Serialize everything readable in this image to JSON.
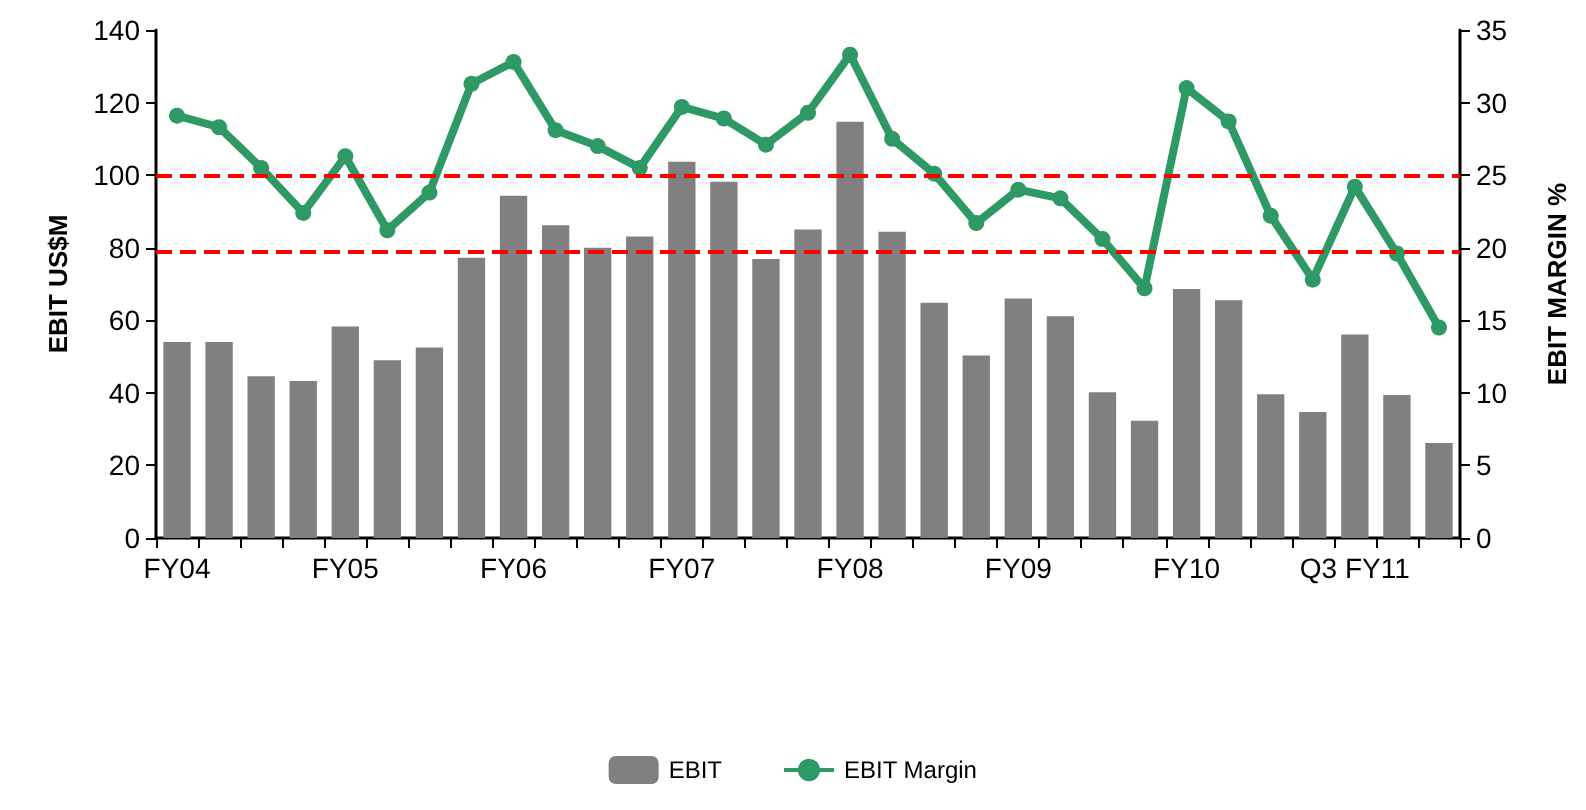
{
  "chart_data": {
    "type": "bar",
    "ylabel": "EBIT US$M",
    "y2label": "EBIT MARGIN %",
    "categories": [
      "FY04",
      null,
      null,
      null,
      "FY05",
      null,
      null,
      null,
      "FY06",
      null,
      null,
      null,
      "FY07",
      null,
      null,
      null,
      "FY08",
      null,
      null,
      null,
      "FY09",
      null,
      null,
      null,
      "FY10",
      null,
      null,
      null,
      "Q3 FY11",
      null,
      null
    ],
    "series": [
      {
        "name": "EBIT",
        "color": "#808080",
        "values": [
          54,
          54,
          44.6,
          43.3,
          58.3,
          49,
          52.5,
          77.2,
          94.3,
          86.2,
          80,
          83.1,
          103.7,
          98.2,
          76.9,
          85,
          114.7,
          84.4,
          64.8,
          50.3,
          66,
          61.1,
          40.2,
          32.3,
          68.6,
          65.5,
          39.6,
          34.7,
          56.1,
          39.4,
          26.2
        ]
      },
      {
        "name": "EBIT Margin",
        "type": "line",
        "axis": "y2",
        "color": "#2e9965",
        "values": [
          29.1,
          28.3,
          25.5,
          22.4,
          26.3,
          21.2,
          23.8,
          31.3,
          32.8,
          28.1,
          27,
          25.5,
          29.7,
          28.9,
          27.1,
          29.3,
          33.3,
          27.5,
          25.1,
          21.7,
          24,
          23.4,
          20.6,
          17.2,
          31,
          28.7,
          22.2,
          17.8,
          24.2,
          19.6,
          14.5
        ]
      }
    ],
    "ylim": [
      0,
      140
    ],
    "yticks": [
      0,
      20,
      40,
      60,
      80,
      100,
      120,
      140
    ],
    "y2lim": [
      0,
      35
    ],
    "y2ticks": [
      0,
      5,
      10,
      15,
      20,
      25,
      30,
      35
    ],
    "ref_lines": [
      {
        "axis": "y2",
        "value": 25,
        "color": "#ff0000",
        "line_style": "dashed"
      },
      {
        "axis": "y2",
        "value": 19.8,
        "color": "#ff0000",
        "line_style": "dashed"
      }
    ],
    "grid": false,
    "legend": "bottom",
    "marker": "circle"
  }
}
